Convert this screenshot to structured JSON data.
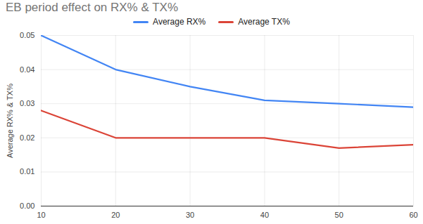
{
  "chart_data": {
    "type": "line",
    "title": "EB period effect on RX% & TX%",
    "x": [
      10,
      20,
      30,
      40,
      50,
      60
    ],
    "series": [
      {
        "name": "Average RX%",
        "color": "#4285f4",
        "values": [
          0.05,
          0.04,
          0.035,
          0.031,
          0.03,
          0.029
        ]
      },
      {
        "name": "Average TX%",
        "color": "#db4437",
        "values": [
          0.028,
          0.02,
          0.02,
          0.02,
          0.017,
          0.018
        ]
      }
    ],
    "ylabel": "Average RX% & TX%",
    "xlim": [
      10,
      60
    ],
    "xticks": [
      10,
      20,
      30,
      40,
      50,
      60
    ],
    "ylim": [
      0,
      0.05
    ],
    "yticks": [
      {
        "value": 0,
        "label": "0.00"
      },
      {
        "value": 0.01,
        "label": "0.01"
      },
      {
        "value": 0.02,
        "label": "0.02"
      },
      {
        "value": 0.03,
        "label": "0.03"
      },
      {
        "value": 0.04,
        "label": "0.04"
      },
      {
        "value": 0.05,
        "label": "0.05"
      }
    ],
    "grid": true,
    "legend": "top"
  }
}
